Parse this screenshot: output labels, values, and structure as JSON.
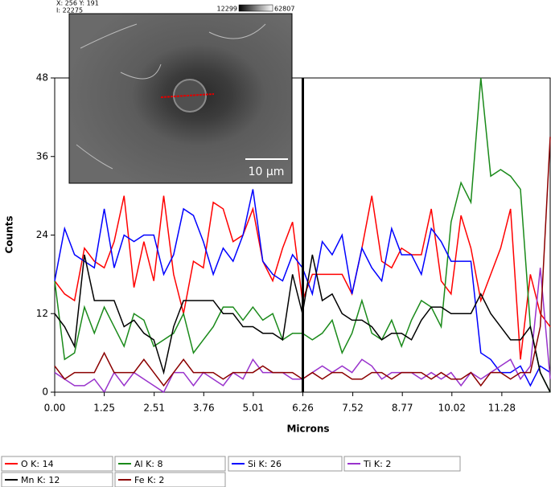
{
  "chart_data": {
    "type": "line",
    "x_label": "Microns",
    "y_label": "Counts",
    "x": [
      0,
      0.25,
      0.5,
      0.75,
      1,
      1.25,
      1.5,
      1.75,
      2,
      2.25,
      2.5,
      2.75,
      3,
      3.25,
      3.5,
      3.75,
      4,
      4.25,
      4.5,
      4.75,
      5,
      5.25,
      5.5,
      5.75,
      6,
      6.25,
      6.5,
      6.75,
      7,
      7.25,
      7.5,
      7.75,
      8,
      8.25,
      8.5,
      8.75,
      9,
      9.25,
      9.5,
      9.75,
      10,
      10.25,
      10.5,
      10.75,
      11,
      11.25,
      11.5,
      11.75,
      12,
      12.25,
      12.5
    ],
    "series": [
      {
        "name": "O K: 14",
        "color": "#ff0000",
        "values": [
          17,
          15,
          14,
          22,
          20,
          19,
          23,
          30,
          16,
          23,
          17,
          30,
          18,
          12,
          20,
          19,
          29,
          28,
          23,
          24,
          28,
          20,
          17,
          22,
          26,
          14,
          18,
          18,
          18,
          18,
          15,
          22,
          30,
          20,
          19,
          22,
          21,
          21,
          28,
          17,
          15,
          27,
          22,
          14,
          18,
          22,
          28,
          5,
          18,
          12,
          10
        ]
      },
      {
        "name": "Al K: 8",
        "color": "#1a8a1a",
        "values": [
          17,
          5,
          6,
          13,
          9,
          13,
          10,
          7,
          12,
          11,
          7,
          8,
          9,
          12,
          6,
          8,
          10,
          13,
          13,
          11,
          13,
          11,
          12,
          8,
          9,
          9,
          8,
          9,
          11,
          6,
          9,
          14,
          9,
          8,
          11,
          7,
          11,
          14,
          13,
          10,
          26,
          32,
          29,
          48,
          33,
          34,
          33,
          31,
          10,
          3,
          0
        ]
      },
      {
        "name": "Si K: 26",
        "color": "#0000ff",
        "values": [
          17,
          25,
          21,
          20,
          19,
          28,
          19,
          24,
          23,
          24,
          24,
          18,
          21,
          28,
          27,
          23,
          18,
          22,
          20,
          24,
          31,
          20,
          18,
          17,
          21,
          19,
          15,
          23,
          21,
          24,
          15,
          22,
          19,
          17,
          25,
          21,
          21,
          18,
          25,
          23,
          20,
          20,
          20,
          6,
          5,
          3,
          3,
          4,
          1,
          4,
          3
        ]
      },
      {
        "name": "Ti K: 2",
        "color": "#9933cc",
        "values": [
          3,
          2,
          1,
          1,
          2,
          0,
          3,
          1,
          3,
          2,
          1,
          0,
          3,
          3,
          1,
          3,
          2,
          1,
          3,
          2,
          5,
          3,
          3,
          3,
          2,
          2,
          3,
          4,
          3,
          4,
          3,
          5,
          4,
          2,
          3,
          3,
          3,
          2,
          3,
          2,
          3,
          1,
          3,
          2,
          3,
          4,
          5,
          2,
          4,
          19,
          2
        ]
      },
      {
        "name": "Mn K: 12",
        "color": "#000000",
        "values": [
          12,
          10,
          7,
          21,
          14,
          14,
          14,
          10,
          11,
          9,
          8,
          3,
          10,
          14,
          14,
          14,
          14,
          12,
          12,
          10,
          10,
          9,
          9,
          8,
          18,
          12,
          21,
          14,
          15,
          12,
          11,
          11,
          10,
          8,
          9,
          9,
          8,
          11,
          13,
          13,
          12,
          12,
          12,
          15,
          12,
          10,
          8,
          8,
          10,
          3,
          0
        ]
      },
      {
        "name": "Fe K: 2",
        "color": "#8b0000",
        "values": [
          4,
          2,
          3,
          3,
          3,
          6,
          3,
          3,
          3,
          5,
          3,
          1,
          3,
          5,
          3,
          3,
          3,
          2,
          3,
          3,
          3,
          4,
          3,
          3,
          3,
          2,
          3,
          2,
          3,
          3,
          2,
          2,
          3,
          3,
          2,
          3,
          3,
          3,
          2,
          3,
          2,
          2,
          3,
          1,
          3,
          3,
          2,
          3,
          3,
          10,
          39
        ]
      }
    ],
    "xlim": [
      0,
      12.5
    ],
    "ylim": [
      0,
      48
    ],
    "xticks": [
      {
        "value": 0,
        "label": "0.00"
      },
      1.25,
      2.51,
      3.76,
      5.01,
      6.26,
      7.52,
      8.77,
      10.02,
      11.28
    ],
    "yticks": [
      0,
      12,
      24,
      36,
      48
    ],
    "cursor_x": 6.26,
    "inset": {
      "position": "X: 256 Y: 191",
      "intensity": "I: 22275",
      "scale_min": "12299",
      "scale_max": "62807",
      "scale_bar": "10 µm"
    }
  }
}
